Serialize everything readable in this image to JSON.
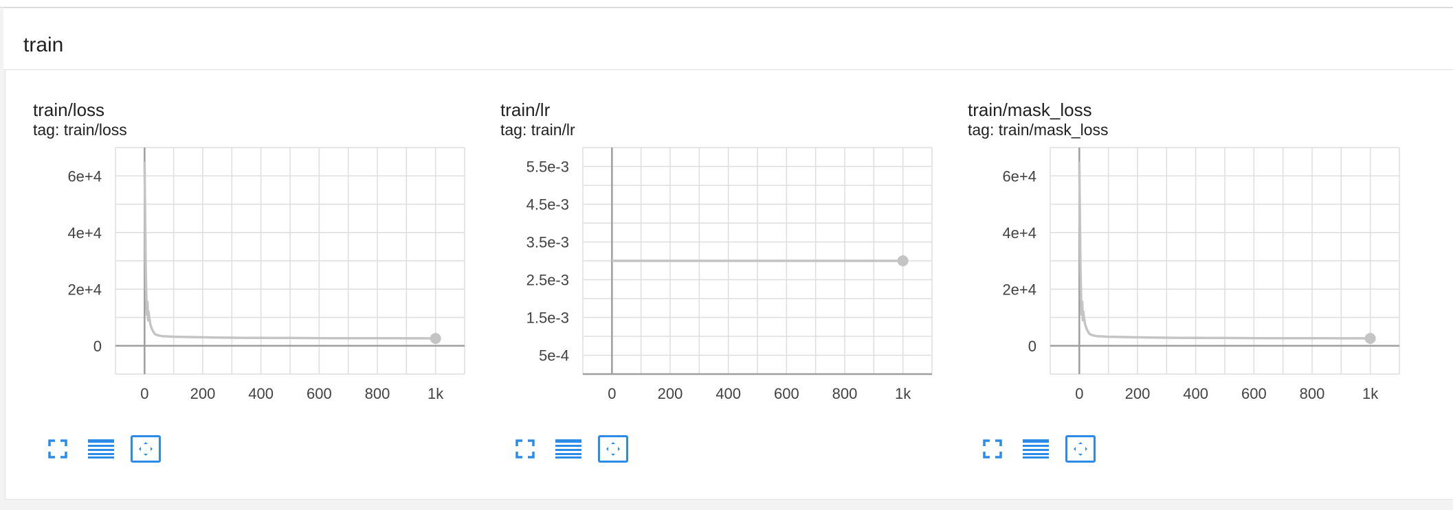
{
  "group": {
    "title": "train"
  },
  "colors": {
    "series": "#c4c4c4",
    "axis": "#9e9e9e",
    "grid": "#dedede",
    "icon": "#2c8be6"
  },
  "cards": [
    {
      "title": "train/loss",
      "tag": "tag: train/loss",
      "chart_data": {
        "type": "line",
        "title": "train/loss",
        "xlabel": "",
        "ylabel": "",
        "xlim": [
          -100,
          1100
        ],
        "ylim": [
          -10000,
          70000
        ],
        "x_ticks": [
          0,
          200,
          400,
          600,
          800,
          1000
        ],
        "x_tick_labels": [
          "0",
          "200",
          "400",
          "600",
          "800",
          "1k"
        ],
        "y_ticks": [
          0,
          20000,
          40000,
          60000
        ],
        "y_tick_labels": [
          "0",
          "2e+4",
          "4e+4",
          "6e+4"
        ],
        "grid": true,
        "series": [
          {
            "x": [
              0,
              2,
              4,
              6,
              8,
              10,
              12,
              14,
              16,
              20,
              25,
              30,
              35,
              40,
              50,
              60,
              80,
              100,
              150,
              200,
              250,
              300,
              350,
              400,
              450,
              500,
              550,
              600,
              650,
              700,
              750,
              800,
              850,
              900,
              950,
              1000
            ],
            "y": [
              65000,
              45000,
              28000,
              17000,
              11000,
              15500,
              9000,
              12000,
              10000,
              7500,
              6000,
              5000,
              4200,
              3900,
              3600,
              3400,
              3300,
              3200,
              3100,
              3000,
              2900,
              2850,
              2800,
              2780,
              2760,
              2740,
              2720,
              2700,
              2690,
              2680,
              2670,
              2660,
              2650,
              2640,
              2630,
              2600
            ],
            "end_marker": true
          }
        ]
      }
    },
    {
      "title": "train/lr",
      "tag": "tag: train/lr",
      "chart_data": {
        "type": "line",
        "title": "train/lr",
        "xlabel": "",
        "ylabel": "",
        "xlim": [
          -100,
          1100
        ],
        "ylim": [
          0,
          0.006
        ],
        "x_ticks": [
          0,
          200,
          400,
          600,
          800,
          1000
        ],
        "x_tick_labels": [
          "0",
          "200",
          "400",
          "600",
          "800",
          "1k"
        ],
        "y_ticks": [
          0.0005,
          0.0015,
          0.0025,
          0.0035,
          0.0045,
          0.0055
        ],
        "y_tick_labels": [
          "5e-4",
          "1.5e-3",
          "2.5e-3",
          "3.5e-3",
          "4.5e-3",
          "5.5e-3"
        ],
        "grid": true,
        "series": [
          {
            "x": [
              0,
              1000
            ],
            "y": [
              0.003,
              0.003
            ],
            "end_marker": true
          }
        ]
      }
    },
    {
      "title": "train/mask_loss",
      "tag": "tag: train/mask_loss",
      "chart_data": {
        "type": "line",
        "title": "train/mask_loss",
        "xlabel": "",
        "ylabel": "",
        "xlim": [
          -100,
          1100
        ],
        "ylim": [
          -10000,
          70000
        ],
        "x_ticks": [
          0,
          200,
          400,
          600,
          800,
          1000
        ],
        "x_tick_labels": [
          "0",
          "200",
          "400",
          "600",
          "800",
          "1k"
        ],
        "y_ticks": [
          0,
          20000,
          40000,
          60000
        ],
        "y_tick_labels": [
          "0",
          "2e+4",
          "4e+4",
          "6e+4"
        ],
        "grid": true,
        "series": [
          {
            "x": [
              0,
              2,
              4,
              6,
              8,
              10,
              12,
              14,
              16,
              20,
              25,
              30,
              35,
              40,
              50,
              60,
              80,
              100,
              150,
              200,
              250,
              300,
              350,
              400,
              450,
              500,
              550,
              600,
              650,
              700,
              750,
              800,
              850,
              900,
              950,
              1000
            ],
            "y": [
              65000,
              45000,
              28000,
              17000,
              11000,
              15500,
              9000,
              12000,
              10000,
              7500,
              6000,
              5000,
              4200,
              3900,
              3600,
              3400,
              3300,
              3200,
              3100,
              3000,
              2900,
              2850,
              2800,
              2780,
              2760,
              2740,
              2720,
              2700,
              2690,
              2680,
              2670,
              2660,
              2650,
              2640,
              2630,
              2600
            ],
            "end_marker": true
          }
        ]
      }
    }
  ],
  "toolbar": {
    "icons": [
      "fullscreen-icon",
      "data-table-icon",
      "fit-domain-icon"
    ]
  }
}
